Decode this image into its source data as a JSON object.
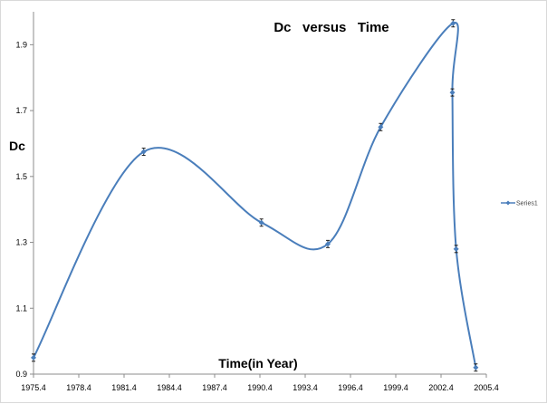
{
  "chart_data": {
    "type": "line",
    "title": "Dc   versus   Time",
    "xlabel": "Time(in Year)",
    "ylabel": "Dc",
    "xlim": [
      1975.4,
      2005.4
    ],
    "ylim": [
      0.9,
      2.0
    ],
    "x_ticks": [
      "1975.4",
      "1978.4",
      "1981.4",
      "1984.4",
      "1987.4",
      "1990.4",
      "1993.4",
      "1996.4",
      "1999.4",
      "2002.4",
      "2005.4"
    ],
    "y_ticks": [
      "0.9",
      "1.1",
      "1.3",
      "1.5",
      "1.7",
      "1.9"
    ],
    "grid": false,
    "legend_position": "right",
    "series": [
      {
        "name": "Series1",
        "color": "#4a7ebb",
        "points": [
          {
            "x": 1975.4,
            "y": 0.95
          },
          {
            "x": 1982.7,
            "y": 1.575
          },
          {
            "x": 1990.5,
            "y": 1.36
          },
          {
            "x": 1994.9,
            "y": 1.295
          },
          {
            "x": 1998.4,
            "y": 1.65
          },
          {
            "x": 2003.2,
            "y": 1.965
          },
          {
            "x": 2003.15,
            "y": 1.755
          },
          {
            "x": 2003.4,
            "y": 1.28
          },
          {
            "x": 2004.7,
            "y": 0.92
          }
        ]
      }
    ]
  }
}
